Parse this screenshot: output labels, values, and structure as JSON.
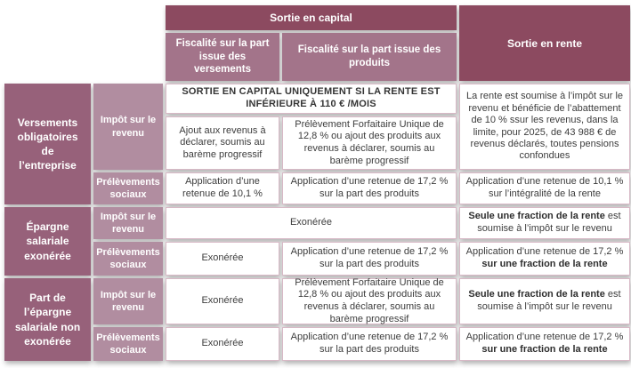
{
  "palette": {
    "header_dark": "#8c4a60",
    "header_mid": "#a3748a",
    "group_label": "#97617a",
    "sub_label": "#b18da0",
    "cell_border": "#d8b9c6",
    "body_text": "#3d3d3d"
  },
  "table": {
    "headers": {
      "capital": "Sortie en capital",
      "col_versements": "Fiscalité sur la part issue des versements",
      "col_produits": "Fiscalité sur la part issue des produits",
      "rente": "Sortie en rente"
    },
    "banner": "SORTIE EN CAPITAL UNIQUEMENT SI LA RENTE EST INFÉRIEURE À 110 € /MOIS",
    "groups": [
      {
        "label": "Versements obligatoires de l’entreprise",
        "rows": [
          {
            "label": "Impôt sur le revenu",
            "versements": "Ajout aux revenus à déclarer, soumis au barème progressif",
            "produits": "Prélèvement Forfaitaire Unique de 12,8 % ou ajout des produits aux revenus à déclarer, soumis au barème progressif",
            "rente": "La rente est soumise à l’impôt sur le revenu et bénéficie de l’abattement de 10 % ssur les revenus, dans la limite, pour 2025, de 43 988 € de revenus déclarés, toutes pensions confondues"
          },
          {
            "label": "Prélèvements sociaux",
            "versements": "Application d’une retenue de 10,1 %",
            "produits": "Application d’une retenue de 17,2 % sur la part des produits",
            "rente": "Application d’une retenue de 10,1 % sur l’intégralité de la rente"
          }
        ]
      },
      {
        "label": "Épargne salariale exonérée",
        "rows": [
          {
            "label": "Impôt sur le revenu",
            "capital": "Exonérée",
            "rente_bold": "Seule une fraction de la rente",
            "rente_rest": " est soumise à l’impôt sur le revenu"
          },
          {
            "label": "Prélèvements sociaux",
            "versements": "Exonérée",
            "produits": "Application d’une retenue de 17,2 % sur la part des produits",
            "rente_prefix": "Application d’une retenue de 17,2 % ",
            "rente_bold": "sur une fraction de la rente"
          }
        ]
      },
      {
        "label": "Part de l’épargne salariale non exonérée",
        "rows": [
          {
            "label": "Impôt sur le revenu",
            "versements": "Exonérée",
            "produits": "Prélèvement Forfaitaire Unique de 12,8 % ou ajout des produits aux revenus à déclarer, soumis au barème progressif",
            "rente_bold": "Seule une fraction de la rente",
            "rente_rest": " est soumise à l’impôt sur le revenu"
          },
          {
            "label": "Prélèvements sociaux",
            "versements": "Exonérée",
            "produits": "Application d’une retenue de 17,2 % sur la part des produits",
            "rente_prefix": "Application d’une retenue de 17,2 % ",
            "rente_bold": "sur une fraction de la rente"
          }
        ]
      }
    ]
  }
}
